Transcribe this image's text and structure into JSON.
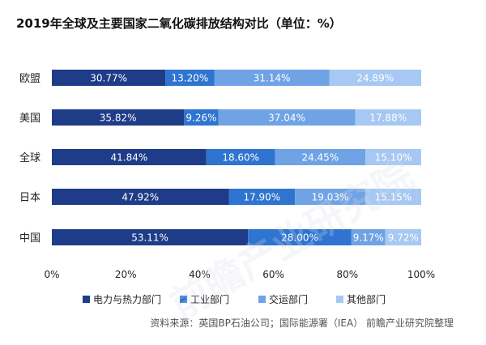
{
  "chart_data": {
    "type": "bar",
    "orientation": "horizontal",
    "stacked": true,
    "title": "2019年全球及主要国家二氧化碳排放结构对比（单位：%）",
    "categories": [
      "欧盟",
      "美国",
      "全球",
      "日本",
      "中国"
    ],
    "series": [
      {
        "name": "电力与热力部门",
        "color": "#1f3c88",
        "values": [
          30.77,
          35.82,
          41.84,
          47.92,
          53.11
        ],
        "labels": [
          "30.77%",
          "35.82%",
          "41.84%",
          "47.92%",
          "53.11%"
        ]
      },
      {
        "name": "工业部门",
        "color": "#2f74d0",
        "values": [
          13.2,
          9.26,
          18.6,
          17.9,
          28.0
        ],
        "labels": [
          "13.20%",
          "9.26%",
          "18.60%",
          "17.90%",
          "28.00%"
        ]
      },
      {
        "name": "交运部门",
        "color": "#6fa3e6",
        "values": [
          31.14,
          37.04,
          24.45,
          19.03,
          9.17
        ],
        "labels": [
          "31.14%",
          "37.04%",
          "24.45%",
          "19.03%",
          "9.17%"
        ]
      },
      {
        "name": "其他部门",
        "color": "#a6c8f2",
        "values": [
          24.89,
          17.88,
          15.1,
          15.15,
          9.72
        ],
        "labels": [
          "24.89%",
          "17.88%",
          "15.10%",
          "15.15%",
          "9.72%"
        ]
      }
    ],
    "xlim": [
      0,
      100
    ],
    "x_ticks": [
      "0%",
      "20%",
      "40%",
      "60%",
      "80%",
      "100%"
    ],
    "x_tick_values": [
      0,
      20,
      40,
      60,
      80,
      100
    ],
    "grid": false,
    "legend_position": "bottom"
  },
  "source": "资料来源：英国BP石油公司；国际能源署（IEA） 前瞻产业研究院整理",
  "watermark": "前瞻产业研究院"
}
